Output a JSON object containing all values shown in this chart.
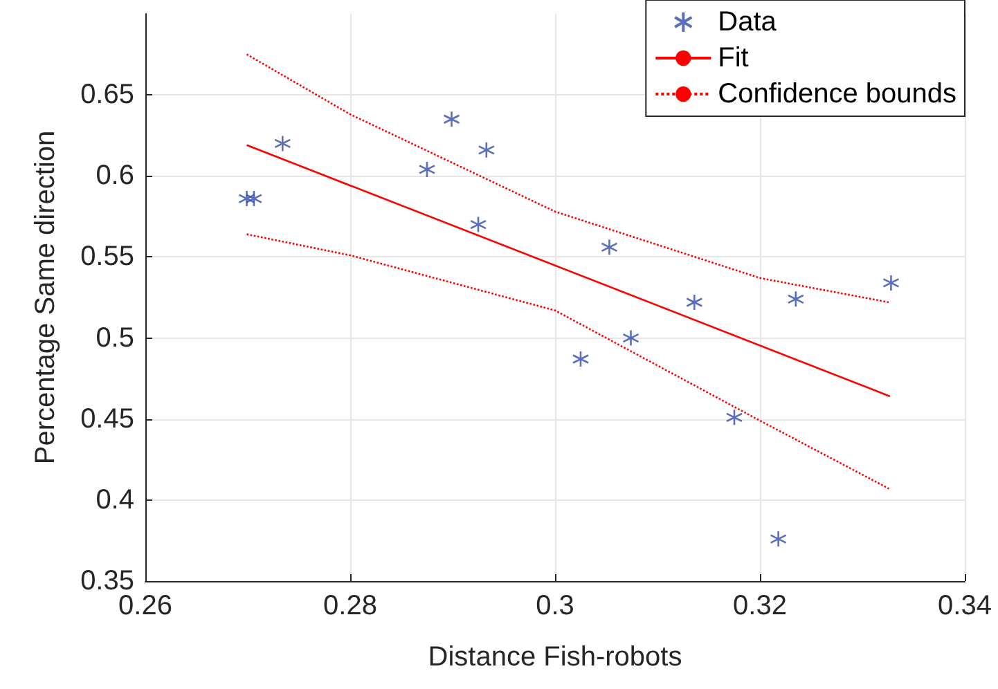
{
  "chart_data": {
    "type": "scatter",
    "xlabel": "Distance Fish-robots",
    "ylabel": "Percentage Same direction",
    "xlim": [
      0.26,
      0.34
    ],
    "xticks": [
      0.26,
      0.28,
      0.3,
      0.32,
      0.34
    ],
    "ylim": [
      0.35,
      0.7
    ],
    "yticks": [
      0.35,
      0.4,
      0.45,
      0.5,
      0.55,
      0.6,
      0.65
    ],
    "grid": true,
    "legend": "top right",
    "series": [
      {
        "name": "Data",
        "marker": "cross",
        "color": "#2f4bab",
        "x": [
          0.2699,
          0.2706,
          0.2734,
          0.2875,
          0.2899,
          0.2925,
          0.2933,
          0.3025,
          0.3053,
          0.3074,
          0.3136,
          0.3175,
          0.3218,
          0.3235,
          0.3328
        ],
        "values": [
          0.586,
          0.586,
          0.62,
          0.604,
          0.635,
          0.57,
          0.616,
          0.487,
          0.556,
          0.5,
          0.522,
          0.451,
          0.376,
          0.524,
          0.534
        ]
      },
      {
        "name": "Fit",
        "type": "line",
        "line_style": "solid",
        "color": "#ff0000",
        "x": [
          0.2699,
          0.3327
        ],
        "values": [
          0.619,
          0.464
        ]
      },
      {
        "name": "Confidence bounds",
        "type": "line",
        "line_style": "dotted",
        "color": "#ff0000",
        "x": [
          0.2699,
          0.28,
          0.3,
          0.32,
          0.3326
        ],
        "values": [
          0.675,
          0.638,
          0.578,
          0.537,
          0.522
        ]
      },
      {
        "type": "line",
        "line_style": "dotted",
        "color": "#ff0000",
        "x": [
          0.2699,
          0.28,
          0.3,
          0.32,
          0.3326
        ],
        "values": [
          0.564,
          0.551,
          0.517,
          0.449,
          0.407
        ]
      }
    ]
  }
}
